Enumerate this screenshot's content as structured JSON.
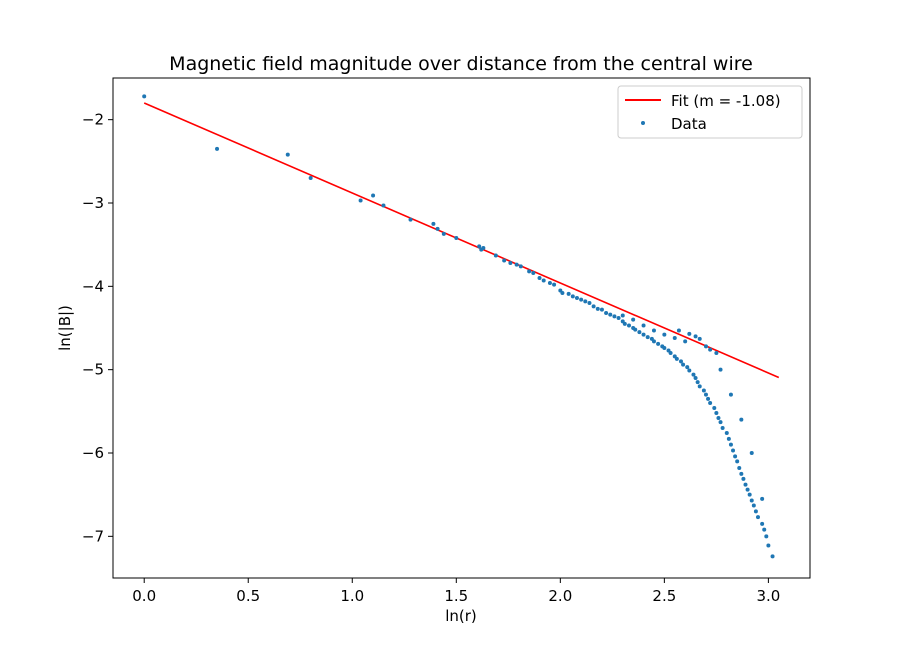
{
  "chart_data": {
    "type": "scatter",
    "title": "Magnetic field magnitude over distance from the central wire",
    "xlabel": "ln(r)",
    "ylabel": "ln(|B|)",
    "xlim": [
      -0.15,
      3.2
    ],
    "ylim": [
      -7.5,
      -1.5
    ],
    "xticks": [
      0.0,
      0.5,
      1.0,
      1.5,
      2.0,
      2.5,
      3.0
    ],
    "xtick_labels": [
      "0.0",
      "0.5",
      "1.0",
      "1.5",
      "2.0",
      "2.5",
      "3.0"
    ],
    "yticks": [
      -2,
      -3,
      -4,
      -5,
      -6,
      -7
    ],
    "ytick_labels": [
      "−2",
      "−3",
      "−4",
      "−5",
      "−6",
      "−7"
    ],
    "grid": false,
    "legend_position": "top-right",
    "colors": {
      "fit": "#ff0000",
      "data": "#1f77b4"
    },
    "fit": {
      "name": "Fit (m = -1.08)",
      "slope": -1.08,
      "intercept": -1.8,
      "x_range": [
        0.0,
        3.05
      ]
    },
    "series": [
      {
        "name": "Data",
        "x": [
          0.0,
          0.35,
          0.69,
          0.8,
          1.04,
          1.1,
          1.15,
          1.28,
          1.39,
          1.41,
          1.44,
          1.5,
          1.61,
          1.62,
          1.63,
          1.69,
          1.73,
          1.76,
          1.79,
          1.81,
          1.85,
          1.87,
          1.9,
          1.92,
          1.95,
          1.97,
          2.0,
          2.01,
          2.04,
          2.06,
          2.08,
          2.1,
          2.12,
          2.14,
          2.16,
          2.18,
          2.2,
          2.22,
          2.24,
          2.26,
          2.28,
          2.3,
          2.31,
          2.33,
          2.35,
          2.36,
          2.38,
          2.4,
          2.42,
          2.44,
          2.45,
          2.47,
          2.49,
          2.5,
          2.52,
          2.53,
          2.55,
          2.56,
          2.58,
          2.59,
          2.61,
          2.62,
          2.64,
          2.65,
          2.66,
          2.67,
          2.69,
          2.7,
          2.71,
          2.72,
          2.74,
          2.75,
          2.76,
          2.77,
          2.78,
          2.8,
          2.81,
          2.82,
          2.83,
          2.84,
          2.85,
          2.86,
          2.87,
          2.88,
          2.89,
          2.9,
          2.91,
          2.92,
          2.93,
          2.94,
          2.95,
          2.97,
          2.98,
          2.99,
          3.0,
          3.02,
          2.3,
          2.35,
          2.4,
          2.45,
          2.5,
          2.55,
          2.6,
          2.65,
          2.7,
          2.75,
          2.57,
          2.62,
          2.67,
          2.72,
          2.77,
          2.82,
          2.87,
          2.92,
          2.97
        ],
        "y": [
          -1.72,
          -2.35,
          -2.42,
          -2.7,
          -2.97,
          -2.91,
          -3.03,
          -3.2,
          -3.25,
          -3.31,
          -3.37,
          -3.42,
          -3.52,
          -3.56,
          -3.54,
          -3.63,
          -3.69,
          -3.72,
          -3.74,
          -3.76,
          -3.82,
          -3.84,
          -3.9,
          -3.93,
          -3.96,
          -3.98,
          -4.05,
          -4.08,
          -4.09,
          -4.12,
          -4.14,
          -4.16,
          -4.18,
          -4.2,
          -4.24,
          -4.27,
          -4.28,
          -4.32,
          -4.34,
          -4.36,
          -4.38,
          -4.42,
          -4.45,
          -4.47,
          -4.5,
          -4.52,
          -4.55,
          -4.58,
          -4.61,
          -4.63,
          -4.66,
          -4.69,
          -4.72,
          -4.74,
          -4.77,
          -4.8,
          -4.84,
          -4.87,
          -4.9,
          -4.94,
          -4.97,
          -5.01,
          -5.06,
          -5.1,
          -5.15,
          -5.2,
          -5.25,
          -5.3,
          -5.35,
          -5.4,
          -5.46,
          -5.52,
          -5.58,
          -5.63,
          -5.7,
          -5.76,
          -5.83,
          -5.9,
          -5.97,
          -6.04,
          -6.1,
          -6.18,
          -6.25,
          -6.31,
          -6.38,
          -6.44,
          -6.5,
          -6.57,
          -6.63,
          -6.7,
          -6.77,
          -6.85,
          -6.92,
          -7.0,
          -7.11,
          -7.24,
          -4.35,
          -4.4,
          -4.47,
          -4.53,
          -4.58,
          -4.62,
          -4.66,
          -4.6,
          -4.72,
          -4.8,
          -4.53,
          -4.57,
          -4.63,
          -4.76,
          -5.0,
          -5.3,
          -5.6,
          -6.0,
          -6.55
        ]
      }
    ]
  }
}
